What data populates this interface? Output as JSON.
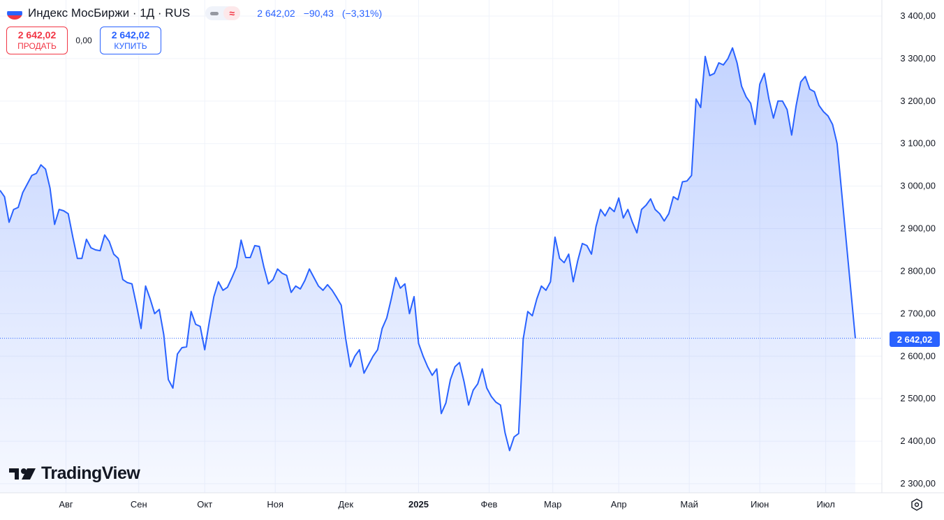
{
  "header": {
    "title": "Индекс МосБиржи · 1Д · RUS",
    "price": "2 642,02",
    "change": "−90,43",
    "change_pct": "(−3,31%)"
  },
  "trade": {
    "sell_value": "2 642,02",
    "sell_label": "ПРОДАТЬ",
    "spread": "0,00",
    "buy_value": "2 642,02",
    "buy_label": "КУПИТЬ"
  },
  "logo_text": "TradingView",
  "last_price_label": "2 642,02",
  "colors": {
    "line": "#2962ff",
    "sell": "#f23645",
    "buy": "#2962ff",
    "grid": "#f0f3fa"
  },
  "chart_data": {
    "type": "area",
    "title": "Индекс МосБиржи · 1Д · RUS",
    "xlabel": "",
    "ylabel": "",
    "ylim": [
      2280,
      3420
    ],
    "y_ticks": [
      "3 400,00",
      "3 300,00",
      "3 200,00",
      "3 100,00",
      "3 000,00",
      "2 900,00",
      "2 800,00",
      "2 700,00",
      "2 600,00",
      "2 500,00",
      "2 400,00",
      "2 300,00"
    ],
    "y_tick_values": [
      3400,
      3300,
      3200,
      3100,
      3000,
      2900,
      2800,
      2700,
      2600,
      2500,
      2400,
      2300
    ],
    "x_ticks": [
      {
        "label": "Авг",
        "date": "2024-08-01",
        "bold": false
      },
      {
        "label": "Сен",
        "date": "2024-09-02",
        "bold": false
      },
      {
        "label": "Окт",
        "date": "2024-10-01",
        "bold": false
      },
      {
        "label": "Ноя",
        "date": "2024-11-01",
        "bold": false
      },
      {
        "label": "Дек",
        "date": "2024-12-02",
        "bold": false
      },
      {
        "label": "2025",
        "date": "2025-01-03",
        "bold": true
      },
      {
        "label": "Фев",
        "date": "2025-02-03",
        "bold": false
      },
      {
        "label": "Мар",
        "date": "2025-03-03",
        "bold": false
      },
      {
        "label": "Апр",
        "date": "2025-04-01",
        "bold": false
      },
      {
        "label": "Май",
        "date": "2025-05-02",
        "bold": false
      },
      {
        "label": "Июн",
        "date": "2025-06-02",
        "bold": false
      },
      {
        "label": "Июл",
        "date": "2025-07-01",
        "bold": false
      }
    ],
    "x_range": [
      "2024-07-03",
      "2025-07-14"
    ],
    "last_value": 2642.02,
    "grid": true,
    "series": [
      {
        "values": [
          [
            "2024-07-03",
            2990
          ],
          [
            "2024-07-05",
            2975
          ],
          [
            "2024-07-07",
            2915
          ],
          [
            "2024-07-09",
            2945
          ],
          [
            "2024-07-11",
            2950
          ],
          [
            "2024-07-13",
            2985
          ],
          [
            "2024-07-15",
            3005
          ],
          [
            "2024-07-17",
            3025
          ],
          [
            "2024-07-19",
            3030
          ],
          [
            "2024-07-21",
            3050
          ],
          [
            "2024-07-23",
            3040
          ],
          [
            "2024-07-25",
            2995
          ],
          [
            "2024-07-27",
            2910
          ],
          [
            "2024-07-29",
            2945
          ],
          [
            "2024-07-31",
            2942
          ],
          [
            "2024-08-02",
            2935
          ],
          [
            "2024-08-04",
            2880
          ],
          [
            "2024-08-06",
            2830
          ],
          [
            "2024-08-08",
            2830
          ],
          [
            "2024-08-10",
            2875
          ],
          [
            "2024-08-12",
            2855
          ],
          [
            "2024-08-14",
            2850
          ],
          [
            "2024-08-16",
            2848
          ],
          [
            "2024-08-18",
            2885
          ],
          [
            "2024-08-20",
            2870
          ],
          [
            "2024-08-22",
            2840
          ],
          [
            "2024-08-24",
            2830
          ],
          [
            "2024-08-26",
            2780
          ],
          [
            "2024-08-28",
            2773
          ],
          [
            "2024-08-30",
            2770
          ],
          [
            "2024-09-01",
            2720
          ],
          [
            "2024-09-03",
            2665
          ],
          [
            "2024-09-05",
            2765
          ],
          [
            "2024-09-07",
            2735
          ],
          [
            "2024-09-09",
            2700
          ],
          [
            "2024-09-11",
            2710
          ],
          [
            "2024-09-13",
            2650
          ],
          [
            "2024-09-15",
            2545
          ],
          [
            "2024-09-17",
            2525
          ],
          [
            "2024-09-19",
            2605
          ],
          [
            "2024-09-21",
            2620
          ],
          [
            "2024-09-23",
            2622
          ],
          [
            "2024-09-25",
            2705
          ],
          [
            "2024-09-27",
            2675
          ],
          [
            "2024-09-29",
            2670
          ],
          [
            "2024-10-01",
            2615
          ],
          [
            "2024-10-03",
            2680
          ],
          [
            "2024-10-05",
            2740
          ],
          [
            "2024-10-07",
            2775
          ],
          [
            "2024-10-09",
            2755
          ],
          [
            "2024-10-11",
            2762
          ],
          [
            "2024-10-13",
            2785
          ],
          [
            "2024-10-15",
            2810
          ],
          [
            "2024-10-17",
            2873
          ],
          [
            "2024-10-19",
            2832
          ],
          [
            "2024-10-21",
            2832
          ],
          [
            "2024-10-23",
            2860
          ],
          [
            "2024-10-25",
            2858
          ],
          [
            "2024-10-27",
            2810
          ],
          [
            "2024-10-29",
            2770
          ],
          [
            "2024-10-31",
            2780
          ],
          [
            "2024-11-02",
            2805
          ],
          [
            "2024-11-04",
            2795
          ],
          [
            "2024-11-06",
            2790
          ],
          [
            "2024-11-08",
            2750
          ],
          [
            "2024-11-10",
            2765
          ],
          [
            "2024-11-12",
            2758
          ],
          [
            "2024-11-14",
            2778
          ],
          [
            "2024-11-16",
            2805
          ],
          [
            "2024-11-18",
            2785
          ],
          [
            "2024-11-20",
            2765
          ],
          [
            "2024-11-22",
            2755
          ],
          [
            "2024-11-24",
            2768
          ],
          [
            "2024-11-26",
            2755
          ],
          [
            "2024-11-28",
            2738
          ],
          [
            "2024-11-30",
            2720
          ],
          [
            "2024-12-02",
            2640
          ],
          [
            "2024-12-04",
            2575
          ],
          [
            "2024-12-06",
            2600
          ],
          [
            "2024-12-08",
            2615
          ],
          [
            "2024-12-10",
            2560
          ],
          [
            "2024-12-12",
            2580
          ],
          [
            "2024-12-14",
            2600
          ],
          [
            "2024-12-16",
            2615
          ],
          [
            "2024-12-18",
            2665
          ],
          [
            "2024-12-20",
            2690
          ],
          [
            "2024-12-22",
            2735
          ],
          [
            "2024-12-24",
            2785
          ],
          [
            "2024-12-26",
            2760
          ],
          [
            "2024-12-28",
            2770
          ],
          [
            "2024-12-30",
            2700
          ],
          [
            "2025-01-01",
            2740
          ],
          [
            "2025-01-03",
            2630
          ],
          [
            "2025-01-05",
            2600
          ],
          [
            "2025-01-07",
            2575
          ],
          [
            "2025-01-09",
            2555
          ],
          [
            "2025-01-11",
            2570
          ],
          [
            "2025-01-13",
            2465
          ],
          [
            "2025-01-15",
            2490
          ],
          [
            "2025-01-17",
            2545
          ],
          [
            "2025-01-19",
            2575
          ],
          [
            "2025-01-21",
            2585
          ],
          [
            "2025-01-23",
            2540
          ],
          [
            "2025-01-25",
            2485
          ],
          [
            "2025-01-27",
            2520
          ],
          [
            "2025-01-29",
            2535
          ],
          [
            "2025-01-31",
            2570
          ],
          [
            "2025-02-02",
            2525
          ],
          [
            "2025-02-04",
            2505
          ],
          [
            "2025-02-06",
            2492
          ],
          [
            "2025-02-08",
            2485
          ],
          [
            "2025-02-10",
            2420
          ],
          [
            "2025-02-12",
            2378
          ],
          [
            "2025-02-14",
            2410
          ],
          [
            "2025-02-16",
            2418
          ],
          [
            "2025-02-18",
            2640
          ],
          [
            "2025-02-20",
            2705
          ],
          [
            "2025-02-22",
            2695
          ],
          [
            "2025-02-24",
            2735
          ],
          [
            "2025-02-26",
            2765
          ],
          [
            "2025-02-28",
            2755
          ],
          [
            "2025-03-02",
            2775
          ],
          [
            "2025-03-04",
            2880
          ],
          [
            "2025-03-06",
            2830
          ],
          [
            "2025-03-08",
            2820
          ],
          [
            "2025-03-10",
            2840
          ],
          [
            "2025-03-12",
            2775
          ],
          [
            "2025-03-14",
            2825
          ],
          [
            "2025-03-16",
            2865
          ],
          [
            "2025-03-18",
            2860
          ],
          [
            "2025-03-20",
            2840
          ],
          [
            "2025-03-22",
            2905
          ],
          [
            "2025-03-24",
            2945
          ],
          [
            "2025-03-26",
            2930
          ],
          [
            "2025-03-28",
            2950
          ],
          [
            "2025-03-30",
            2940
          ],
          [
            "2025-04-01",
            2972
          ],
          [
            "2025-04-03",
            2925
          ],
          [
            "2025-04-05",
            2945
          ],
          [
            "2025-04-07",
            2915
          ],
          [
            "2025-04-09",
            2890
          ],
          [
            "2025-04-11",
            2945
          ],
          [
            "2025-04-13",
            2955
          ],
          [
            "2025-04-15",
            2970
          ],
          [
            "2025-04-17",
            2945
          ],
          [
            "2025-04-19",
            2935
          ],
          [
            "2025-04-21",
            2918
          ],
          [
            "2025-04-23",
            2935
          ],
          [
            "2025-04-25",
            2975
          ],
          [
            "2025-04-27",
            2968
          ],
          [
            "2025-04-29",
            3010
          ],
          [
            "2025-05-01",
            3012
          ],
          [
            "2025-05-03",
            3025
          ],
          [
            "2025-05-05",
            3205
          ],
          [
            "2025-05-07",
            3185
          ],
          [
            "2025-05-09",
            3305
          ],
          [
            "2025-05-11",
            3260
          ],
          [
            "2025-05-13",
            3265
          ],
          [
            "2025-05-15",
            3290
          ],
          [
            "2025-05-17",
            3285
          ],
          [
            "2025-05-19",
            3300
          ],
          [
            "2025-05-21",
            3325
          ],
          [
            "2025-05-23",
            3290
          ],
          [
            "2025-05-25",
            3235
          ],
          [
            "2025-05-27",
            3210
          ],
          [
            "2025-05-29",
            3195
          ],
          [
            "2025-05-31",
            3145
          ],
          [
            "2025-06-02",
            3240
          ],
          [
            "2025-06-04",
            3265
          ],
          [
            "2025-06-06",
            3205
          ],
          [
            "2025-06-08",
            3160
          ],
          [
            "2025-06-10",
            3200
          ],
          [
            "2025-06-12",
            3200
          ],
          [
            "2025-06-14",
            3180
          ],
          [
            "2025-06-16",
            3120
          ],
          [
            "2025-06-18",
            3190
          ],
          [
            "2025-06-20",
            3245
          ],
          [
            "2025-06-22",
            3258
          ],
          [
            "2025-06-24",
            3228
          ],
          [
            "2025-06-26",
            3222
          ],
          [
            "2025-06-28",
            3190
          ],
          [
            "2025-06-30",
            3175
          ],
          [
            "2025-07-02",
            3165
          ],
          [
            "2025-07-04",
            3145
          ],
          [
            "2025-07-06",
            3100
          ]
        ]
      }
    ]
  }
}
